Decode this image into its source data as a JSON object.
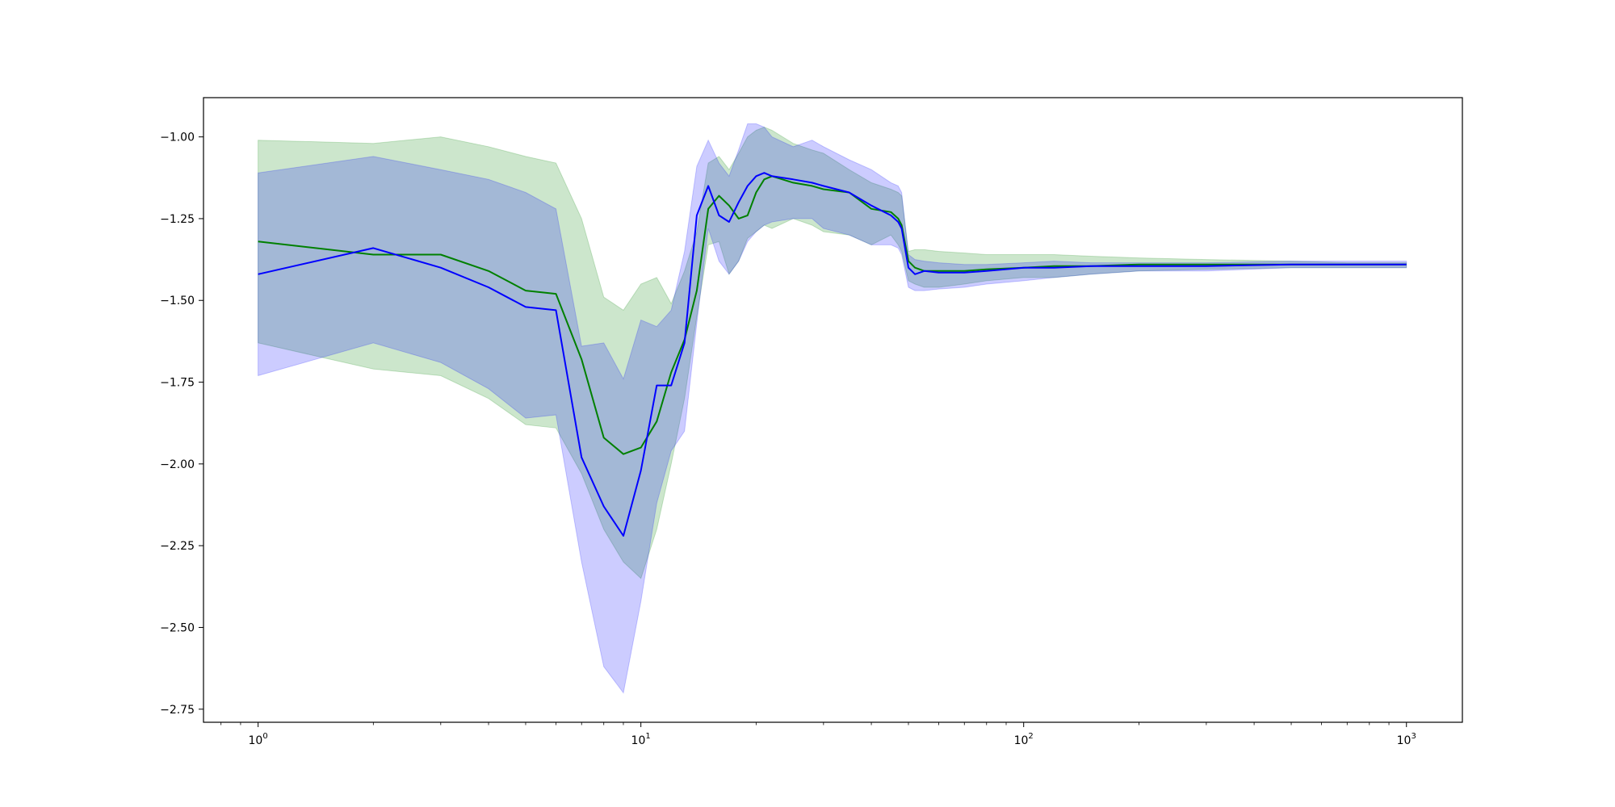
{
  "chart_data": {
    "type": "line",
    "xscale": "log",
    "xlim": [
      0.72,
      1400
    ],
    "ylim": [
      -2.79,
      -0.88
    ],
    "grid": false,
    "legend": "none",
    "yticks": [
      {
        "value": -1.0,
        "label": "−1.00"
      },
      {
        "value": -1.25,
        "label": "−1.25"
      },
      {
        "value": -1.5,
        "label": "−1.50"
      },
      {
        "value": -1.75,
        "label": "−1.75"
      },
      {
        "value": -2.0,
        "label": "−2.00"
      },
      {
        "value": -2.25,
        "label": "−2.25"
      },
      {
        "value": -2.5,
        "label": "−2.50"
      },
      {
        "value": -2.75,
        "label": "−2.75"
      }
    ],
    "xticks": [
      {
        "value": 1,
        "base": "10",
        "exp": "0"
      },
      {
        "value": 10,
        "base": "10",
        "exp": "1"
      },
      {
        "value": 100,
        "base": "10",
        "exp": "2"
      },
      {
        "value": 1000,
        "base": "10",
        "exp": "3"
      }
    ],
    "series": [
      {
        "color": "#008000",
        "band_color": "#008000",
        "band_opacity": 0.2,
        "x": [
          1,
          2,
          3,
          4,
          5,
          6,
          7,
          8,
          9,
          10,
          11,
          12,
          13,
          14,
          15,
          16,
          17,
          18,
          19,
          20,
          21,
          22,
          25,
          28,
          30,
          35,
          40,
          45,
          47,
          48,
          50,
          52,
          55,
          60,
          70,
          80,
          100,
          120,
          150,
          200,
          300,
          500,
          700,
          1000
        ],
        "mean": [
          -1.32,
          -1.36,
          -1.36,
          -1.41,
          -1.47,
          -1.48,
          -1.68,
          -1.92,
          -1.97,
          -1.95,
          -1.87,
          -1.72,
          -1.62,
          -1.47,
          -1.22,
          -1.18,
          -1.21,
          -1.25,
          -1.24,
          -1.17,
          -1.13,
          -1.12,
          -1.14,
          -1.15,
          -1.16,
          -1.17,
          -1.22,
          -1.23,
          -1.25,
          -1.27,
          -1.38,
          -1.4,
          -1.41,
          -1.41,
          -1.41,
          -1.405,
          -1.4,
          -1.395,
          -1.395,
          -1.39,
          -1.39,
          -1.39,
          -1.39,
          -1.39
        ],
        "upper": [
          -1.01,
          -1.02,
          -1.0,
          -1.03,
          -1.06,
          -1.08,
          -1.25,
          -1.49,
          -1.53,
          -1.45,
          -1.43,
          -1.51,
          -1.41,
          -1.29,
          -1.08,
          -1.06,
          -1.1,
          -1.05,
          -1.0,
          -0.98,
          -0.97,
          -0.98,
          -1.02,
          -1.04,
          -1.05,
          -1.1,
          -1.14,
          -1.16,
          -1.17,
          -1.18,
          -1.35,
          -1.345,
          -1.345,
          -1.35,
          -1.355,
          -1.36,
          -1.36,
          -1.36,
          -1.365,
          -1.37,
          -1.375,
          -1.38,
          -1.385,
          -1.385
        ],
        "lower": [
          -1.63,
          -1.71,
          -1.73,
          -1.8,
          -1.88,
          -1.89,
          -2.03,
          -2.2,
          -2.3,
          -2.35,
          -2.2,
          -2.0,
          -1.8,
          -1.55,
          -1.33,
          -1.32,
          -1.42,
          -1.38,
          -1.31,
          -1.29,
          -1.27,
          -1.28,
          -1.25,
          -1.27,
          -1.29,
          -1.3,
          -1.33,
          -1.3,
          -1.33,
          -1.35,
          -1.44,
          -1.45,
          -1.46,
          -1.46,
          -1.45,
          -1.44,
          -1.43,
          -1.43,
          -1.42,
          -1.41,
          -1.405,
          -1.4,
          -1.4,
          -1.4
        ]
      },
      {
        "color": "#0000ff",
        "band_color": "#0000ff",
        "band_opacity": 0.2,
        "x": [
          1,
          2,
          3,
          4,
          5,
          6,
          7,
          8,
          9,
          10,
          11,
          12,
          13,
          14,
          15,
          16,
          17,
          18,
          19,
          20,
          21,
          22,
          25,
          28,
          30,
          35,
          40,
          45,
          47,
          48,
          50,
          52,
          55,
          60,
          70,
          80,
          100,
          120,
          150,
          200,
          300,
          500,
          700,
          1000
        ],
        "mean": [
          -1.42,
          -1.34,
          -1.4,
          -1.46,
          -1.52,
          -1.53,
          -1.98,
          -2.13,
          -2.22,
          -2.02,
          -1.76,
          -1.76,
          -1.63,
          -1.24,
          -1.15,
          -1.24,
          -1.26,
          -1.2,
          -1.15,
          -1.12,
          -1.11,
          -1.12,
          -1.13,
          -1.14,
          -1.15,
          -1.17,
          -1.21,
          -1.24,
          -1.26,
          -1.28,
          -1.4,
          -1.42,
          -1.41,
          -1.415,
          -1.415,
          -1.41,
          -1.4,
          -1.4,
          -1.395,
          -1.395,
          -1.395,
          -1.39,
          -1.39,
          -1.39
        ],
        "upper": [
          -1.11,
          -1.06,
          -1.1,
          -1.13,
          -1.17,
          -1.22,
          -1.64,
          -1.63,
          -1.74,
          -1.56,
          -1.58,
          -1.53,
          -1.35,
          -1.09,
          -1.01,
          -1.08,
          -1.12,
          -1.04,
          -0.96,
          -0.96,
          -0.97,
          -1.0,
          -1.03,
          -1.01,
          -1.03,
          -1.07,
          -1.1,
          -1.14,
          -1.15,
          -1.17,
          -1.36,
          -1.375,
          -1.38,
          -1.385,
          -1.39,
          -1.39,
          -1.385,
          -1.38,
          -1.385,
          -1.385,
          -1.385,
          -1.38,
          -1.38,
          -1.38
        ],
        "lower": [
          -1.73,
          -1.63,
          -1.69,
          -1.77,
          -1.86,
          -1.85,
          -2.3,
          -2.62,
          -2.7,
          -2.42,
          -2.12,
          -1.96,
          -1.9,
          -1.57,
          -1.28,
          -1.38,
          -1.42,
          -1.38,
          -1.32,
          -1.29,
          -1.27,
          -1.26,
          -1.25,
          -1.25,
          -1.28,
          -1.3,
          -1.33,
          -1.33,
          -1.34,
          -1.36,
          -1.46,
          -1.47,
          -1.47,
          -1.465,
          -1.46,
          -1.45,
          -1.44,
          -1.43,
          -1.42,
          -1.41,
          -1.41,
          -1.4,
          -1.4,
          -1.4
        ]
      }
    ]
  }
}
